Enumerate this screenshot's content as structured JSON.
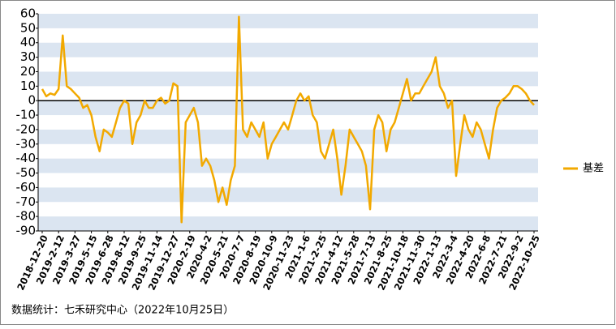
{
  "chart_data": {
    "type": "line",
    "categories": [
      "2018-12-20",
      null,
      null,
      null,
      "2019-2-12",
      null,
      null,
      null,
      "2019-3-27",
      null,
      null,
      null,
      "2019-5-15",
      null,
      null,
      null,
      "2019-6-28",
      null,
      null,
      null,
      "2019-8-12",
      null,
      null,
      null,
      "2019-9-25",
      null,
      null,
      null,
      "2019-11-14",
      null,
      null,
      null,
      "2019-12-27",
      null,
      null,
      null,
      "2020-2-19",
      null,
      null,
      null,
      "2020-4-2",
      null,
      null,
      null,
      "2020-5-21",
      null,
      null,
      null,
      "2020-7-7",
      null,
      null,
      null,
      "2020-8-19",
      null,
      null,
      null,
      "2020-10-9",
      null,
      null,
      null,
      "2020-11-23",
      null,
      null,
      null,
      "2021-1-6",
      null,
      null,
      null,
      "2021-2-25",
      null,
      null,
      null,
      "2021-4-12",
      null,
      null,
      null,
      "2021-5-28",
      null,
      null,
      null,
      "2021-7-13",
      null,
      null,
      null,
      "2021-8-25",
      null,
      null,
      null,
      "2021-10-18",
      null,
      null,
      null,
      "2021-11-30",
      null,
      null,
      null,
      "2022-1-13",
      null,
      null,
      null,
      "2022-3-4",
      null,
      null,
      null,
      "2022-4-20",
      null,
      null,
      null,
      "2022-6-8",
      null,
      null,
      null,
      "2022-7-21",
      null,
      null,
      null,
      "2022-9-2",
      null,
      null,
      null,
      "2022-10-25"
    ],
    "series": [
      {
        "name": "基差",
        "color": "#f2a900",
        "values": [
          8,
          3,
          5,
          4,
          8,
          45,
          10,
          8,
          5,
          2,
          -5,
          -3,
          -10,
          -25,
          -35,
          -20,
          -22,
          -25,
          -15,
          -5,
          0,
          -2,
          -30,
          -15,
          -10,
          0,
          -5,
          -5,
          0,
          2,
          -2,
          0,
          12,
          10,
          -84,
          -15,
          -10,
          -5,
          -15,
          -45,
          -40,
          -45,
          -55,
          -70,
          -60,
          -72,
          -55,
          -45,
          58,
          -20,
          -25,
          -15,
          -20,
          -25,
          -15,
          -40,
          -30,
          -25,
          -20,
          -15,
          -20,
          -10,
          0,
          5,
          0,
          3,
          -10,
          -15,
          -35,
          -40,
          -30,
          -20,
          -40,
          -65,
          -45,
          -20,
          -25,
          -30,
          -35,
          -45,
          -75,
          -20,
          -10,
          -15,
          -35,
          -20,
          -15,
          -5,
          5,
          15,
          0,
          5,
          5,
          10,
          15,
          20,
          30,
          10,
          5,
          -5,
          0,
          -52,
          -30,
          -10,
          -20,
          -25,
          -15,
          -20,
          -30,
          -40,
          -20,
          -5,
          0,
          2,
          5,
          10,
          10,
          8,
          5,
          0,
          -3
        ]
      }
    ],
    "ylim": [
      -90,
      60
    ],
    "yticks": [
      60,
      50,
      40,
      30,
      20,
      10,
      0,
      -10,
      -20,
      -30,
      -40,
      -50,
      -60,
      -70,
      -80,
      -90
    ],
    "legend": "right",
    "footer": "数据统计：七禾研究中心（2022年10月25日）"
  }
}
